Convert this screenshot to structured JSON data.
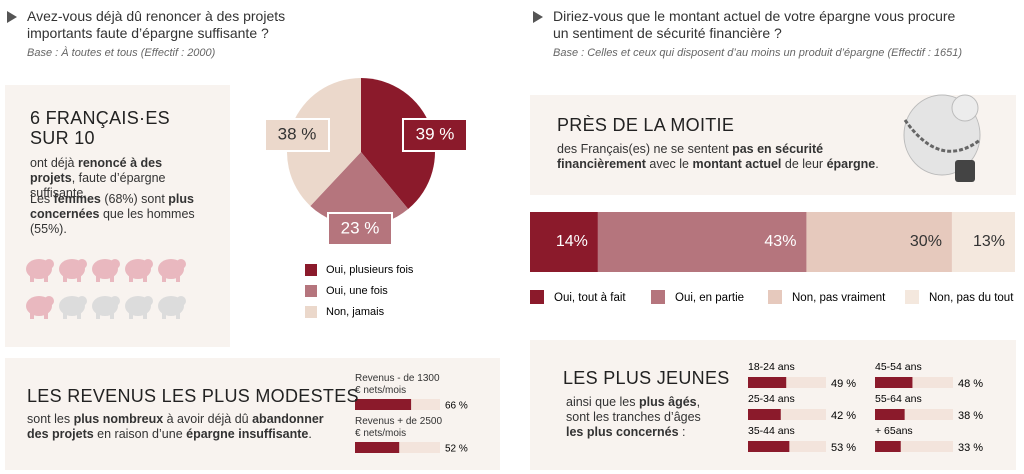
{
  "left": {
    "question": "Avez-vous déjà dû renoncer à des projets importants faute d’épargne suffisante ?",
    "base": "Base : À toutes et tous (Effectif : 2000)",
    "headline": "6 FRANÇAIS·ES SUR 10",
    "text_1": [
      {
        "text": "ont déjà "
      },
      {
        "text": "renoncé à des projets",
        "bold": true
      },
      {
        "text": ", faute d’épargne suffisante."
      }
    ],
    "text_2": [
      {
        "text": "Les "
      },
      {
        "text": "femmes",
        "bold": true
      },
      {
        "text": " (68%) sont "
      },
      {
        "text": "plus concernées",
        "bold": true
      },
      {
        "text": " que les hommes (55%)."
      }
    ],
    "income_title": "LES REVENUS LES PLUS MODESTES",
    "income_text": [
      {
        "text": "sont les "
      },
      {
        "text": "plus nombreux",
        "bold": true
      },
      {
        "text": " à avoir déjà dû "
      },
      {
        "text": "abandonner des projets",
        "bold": true
      },
      {
        "text": " en raison d’une "
      },
      {
        "text": "épargne insuffisante",
        "bold": true
      },
      {
        "text": "."
      }
    ]
  },
  "right": {
    "question": "Diriez-vous que le montant actuel de votre épargne vous procure un sentiment de sécurité financière ?",
    "base": "Base : Celles et ceux qui disposent d’au moins un produit d’épargne (Effectif : 1651)",
    "headline": "PRÈS DE LA MOITIE",
    "text": [
      {
        "text": "des Français(es) ne se sentent "
      },
      {
        "text": "pas en sécurité financièrement",
        "bold": true
      },
      {
        "text": " avec le "
      },
      {
        "text": "montant actuel",
        "bold": true
      },
      {
        "text": " de leur "
      },
      {
        "text": "épargne",
        "bold": true
      },
      {
        "text": "."
      }
    ],
    "young_title": "LES PLUS JEUNES",
    "young_text": [
      {
        "text": "ainsi que les "
      },
      {
        "text": "plus âgés",
        "bold": true
      },
      {
        "text": ", sont les tranches d’âges "
      },
      {
        "text": "les plus concernés",
        "bold": true
      },
      {
        "text": " :"
      }
    ]
  },
  "chart_data": [
    {
      "type": "pie",
      "categories": [
        "Oui, plusieurs fois",
        "Oui, une fois",
        "Non, jamais"
      ],
      "values": [
        39,
        23,
        38
      ],
      "value_labels": [
        "39 %",
        "23 %",
        "38 %"
      ],
      "colors": [
        "#8b1a2b",
        "#b5757d",
        "#ebd8cb"
      ]
    },
    {
      "type": "bar",
      "orientation": "horizontal",
      "categories": [
        "Revenus - de 1300 € nets/mois",
        "Revenus + de 2500 € nets/mois"
      ],
      "values": [
        66,
        52
      ],
      "value_labels": [
        "66 %",
        "52 %"
      ],
      "xlim": [
        0,
        100
      ],
      "color": "#8b1a2b"
    },
    {
      "type": "stacked_bar",
      "orientation": "horizontal",
      "xlim": [
        0,
        100
      ],
      "series": [
        {
          "name": "Oui, tout à fait",
          "color": "#8b1a2b",
          "values": [
            14
          ],
          "value_labels": [
            "14%"
          ]
        },
        {
          "name": "Oui, en partie",
          "color": "#b5757d",
          "values": [
            43
          ],
          "value_labels": [
            "43%"
          ]
        },
        {
          "name": "Non, pas vraiment",
          "color": "#e6c9bd",
          "values": [
            30
          ],
          "value_labels": [
            "30%"
          ]
        },
        {
          "name": "Non, pas du tout",
          "color": "#f4e8de",
          "values": [
            13
          ],
          "value_labels": [
            "13%"
          ]
        }
      ]
    },
    {
      "type": "bar",
      "orientation": "horizontal",
      "categories": [
        "18-24 ans",
        "25-34 ans",
        "35-44 ans",
        "45-54 ans",
        "55-64 ans",
        "+ 65ans"
      ],
      "values": [
        49,
        42,
        53,
        48,
        38,
        33
      ],
      "value_labels": [
        "49 %",
        "42 %",
        "53 %",
        "48 %",
        "38 %",
        "33 %"
      ],
      "xlim": [
        0,
        100
      ],
      "color": "#8b1a2b"
    }
  ]
}
